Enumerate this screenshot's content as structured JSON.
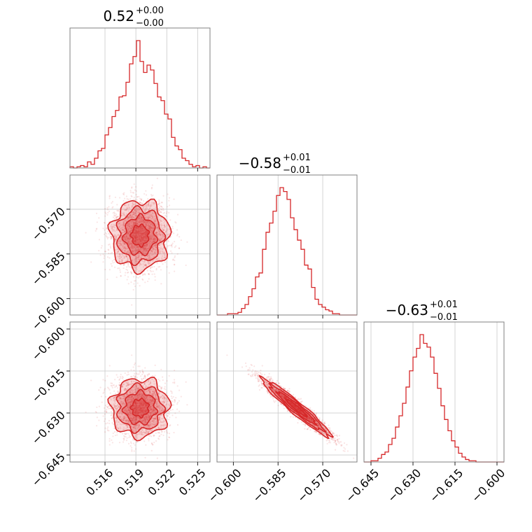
{
  "chart_data": {
    "type": "corner",
    "color": "#d62728",
    "parameters": [
      {
        "title_main": "0.52",
        "title_up": "+0.00",
        "title_down": "−0.00",
        "range": [
          0.5126,
          0.5262
        ],
        "ticks": [
          0.516,
          0.519,
          0.522,
          0.525
        ],
        "tick_labels": [
          "0.516",
          "0.519",
          "0.522",
          "0.525"
        ],
        "mean": 0.5194,
        "std": 0.0014
      },
      {
        "title_main": "−0.58",
        "title_up": "+0.01",
        "title_down": "−0.01",
        "range": [
          -0.6055,
          -0.5585
        ],
        "ticks": [
          -0.6,
          -0.585,
          -0.57
        ],
        "tick_labels": [
          "−0.600",
          "−0.585",
          "−0.570"
        ],
        "mean": -0.5788,
        "std": 0.0058
      },
      {
        "title_main": "−0.63",
        "title_up": "+0.01",
        "title_down": "−0.01",
        "range": [
          -0.6475,
          -0.5975
        ],
        "ticks": [
          -0.645,
          -0.63,
          -0.615,
          -0.6
        ],
        "tick_labels": [
          "−0.645",
          "−0.630",
          "−0.615",
          "−0.600"
        ],
        "mean": -0.6282,
        "std": 0.0052
      }
    ],
    "histograms": [
      {
        "parameter": 0,
        "bins": 40,
        "counts": [
          1,
          0,
          1,
          2,
          1,
          5,
          3,
          8,
          14,
          16,
          27,
          33,
          42,
          47,
          58,
          59,
          70,
          85,
          91,
          104,
          87,
          78,
          84,
          80,
          69,
          58,
          55,
          44,
          40,
          25,
          18,
          15,
          8,
          6,
          3,
          1,
          2,
          0,
          1,
          0
        ]
      },
      {
        "parameter": 1,
        "bins": 40,
        "counts": [
          0,
          0,
          0,
          1,
          1,
          1,
          2,
          5,
          8,
          14,
          20,
          29,
          32,
          50,
          63,
          70,
          79,
          91,
          97,
          94,
          88,
          74,
          65,
          57,
          50,
          38,
          35,
          21,
          12,
          8,
          6,
          4,
          3,
          1,
          1,
          0,
          0,
          0,
          0,
          0
        ]
      },
      {
        "parameter": 2,
        "bins": 40,
        "counts": [
          0,
          0,
          1,
          1,
          3,
          6,
          8,
          14,
          19,
          28,
          37,
          47,
          60,
          73,
          84,
          91,
          102,
          95,
          92,
          84,
          71,
          59,
          45,
          34,
          25,
          17,
          12,
          7,
          4,
          2,
          1,
          1,
          0,
          0,
          0,
          0,
          0,
          0,
          0,
          0
        ]
      }
    ],
    "pairs": [
      {
        "x": 0,
        "y": 1,
        "correlation": 0.0
      },
      {
        "x": 0,
        "y": 2,
        "correlation": 0.0
      },
      {
        "x": 1,
        "y": 2,
        "correlation": -0.96
      }
    ]
  }
}
